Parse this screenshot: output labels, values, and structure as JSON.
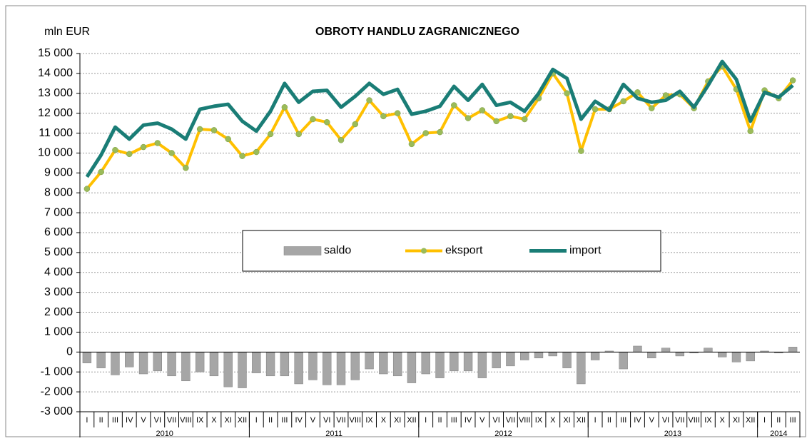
{
  "chart_data": {
    "type": "bar-line",
    "title": "OBROTY HANDLU ZAGRANICZNEGO",
    "y_axis_label": "mln EUR",
    "categories": [
      "I",
      "II",
      "III",
      "IV",
      "V",
      "VI",
      "VII",
      "VIII",
      "IX",
      "X",
      "XI",
      "XII",
      "I",
      "II",
      "III",
      "IV",
      "V",
      "VI",
      "VII",
      "VIII",
      "IX",
      "X",
      "XI",
      "XII",
      "I",
      "II",
      "III",
      "IV",
      "V",
      "VI",
      "VII",
      "VIII",
      "IX",
      "X",
      "XI",
      "XII",
      "I",
      "II",
      "III",
      "IV",
      "V",
      "VI",
      "VII",
      "VIII",
      "IX",
      "X",
      "XI",
      "XII",
      "I",
      "II",
      "III"
    ],
    "years": [
      "2010",
      "2011",
      "2012",
      "2013",
      "2014"
    ],
    "ylim": [
      -3000,
      15000
    ],
    "yticks": [
      {
        "value": -3000,
        "label": "-3 000"
      },
      {
        "value": -2000,
        "label": "-2 000"
      },
      {
        "value": -1000,
        "label": "-1 000"
      },
      0,
      {
        "value": 1000,
        "label": "1 000"
      },
      {
        "value": 2000,
        "label": "2 000"
      },
      {
        "value": 3000,
        "label": "3 000"
      },
      {
        "value": 4000,
        "label": "4 000"
      },
      {
        "value": 5000,
        "label": "5 000"
      },
      {
        "value": 6000,
        "label": "6 000"
      },
      {
        "value": 7000,
        "label": "7 000"
      },
      {
        "value": 8000,
        "label": "8 000"
      },
      {
        "value": 9000,
        "label": "9 000"
      },
      {
        "value": 10000,
        "label": "10 000"
      },
      {
        "value": 11000,
        "label": "11 000"
      },
      {
        "value": 12000,
        "label": "12 000"
      },
      {
        "value": 13000,
        "label": "13 000"
      },
      {
        "value": 14000,
        "label": "14 000"
      },
      {
        "value": 15000,
        "label": "15 000"
      }
    ],
    "grid": true,
    "legend": "center",
    "series": [
      {
        "name": "saldo",
        "type": "bar",
        "color": "#a6a6a6",
        "values": [
          -550,
          -800,
          -1150,
          -750,
          -1100,
          -950,
          -1200,
          -1450,
          -1000,
          -1200,
          -1750,
          -1800,
          -1050,
          -1200,
          -1200,
          -1600,
          -1400,
          -1650,
          -1650,
          -1400,
          -850,
          -1100,
          -1200,
          -1550,
          -1100,
          -1300,
          -950,
          -950,
          -1300,
          -800,
          -700,
          -400,
          -300,
          -200,
          -800,
          -1600,
          -400,
          50,
          -850,
          300,
          -300,
          200,
          -200,
          -50,
          200,
          -250,
          -500,
          -450,
          50,
          -50,
          250
        ]
      },
      {
        "name": "eksport",
        "type": "line",
        "color": "#ffc000",
        "marker_color": "#9bbb59",
        "values": [
          8200,
          9050,
          10150,
          9950,
          10300,
          10500,
          10000,
          9250,
          11200,
          11150,
          10700,
          9850,
          10050,
          10950,
          12300,
          10950,
          11700,
          11550,
          10650,
          11450,
          12650,
          11850,
          12000,
          10450,
          11000,
          11050,
          12400,
          11750,
          12150,
          11600,
          11850,
          11700,
          12750,
          14000,
          13000,
          10100,
          12200,
          12200,
          12600,
          13050,
          12250,
          12900,
          12950,
          12250,
          13600,
          14350,
          13200,
          11100,
          13150,
          12750,
          13650
        ]
      },
      {
        "name": "import",
        "type": "line",
        "color": "#1a7d76",
        "values": [
          8800,
          9900,
          11300,
          10700,
          11400,
          11500,
          11200,
          10700,
          12200,
          12350,
          12450,
          11600,
          11100,
          12100,
          13500,
          12550,
          13100,
          13150,
          12300,
          12850,
          13500,
          12950,
          13200,
          11950,
          12100,
          12350,
          13350,
          12650,
          13450,
          12400,
          12550,
          12100,
          13000,
          14200,
          13750,
          11700,
          12600,
          12150,
          13450,
          12750,
          12550,
          12650,
          13100,
          12300,
          13400,
          14600,
          13700,
          11600,
          13050,
          12800,
          13400
        ]
      }
    ]
  }
}
